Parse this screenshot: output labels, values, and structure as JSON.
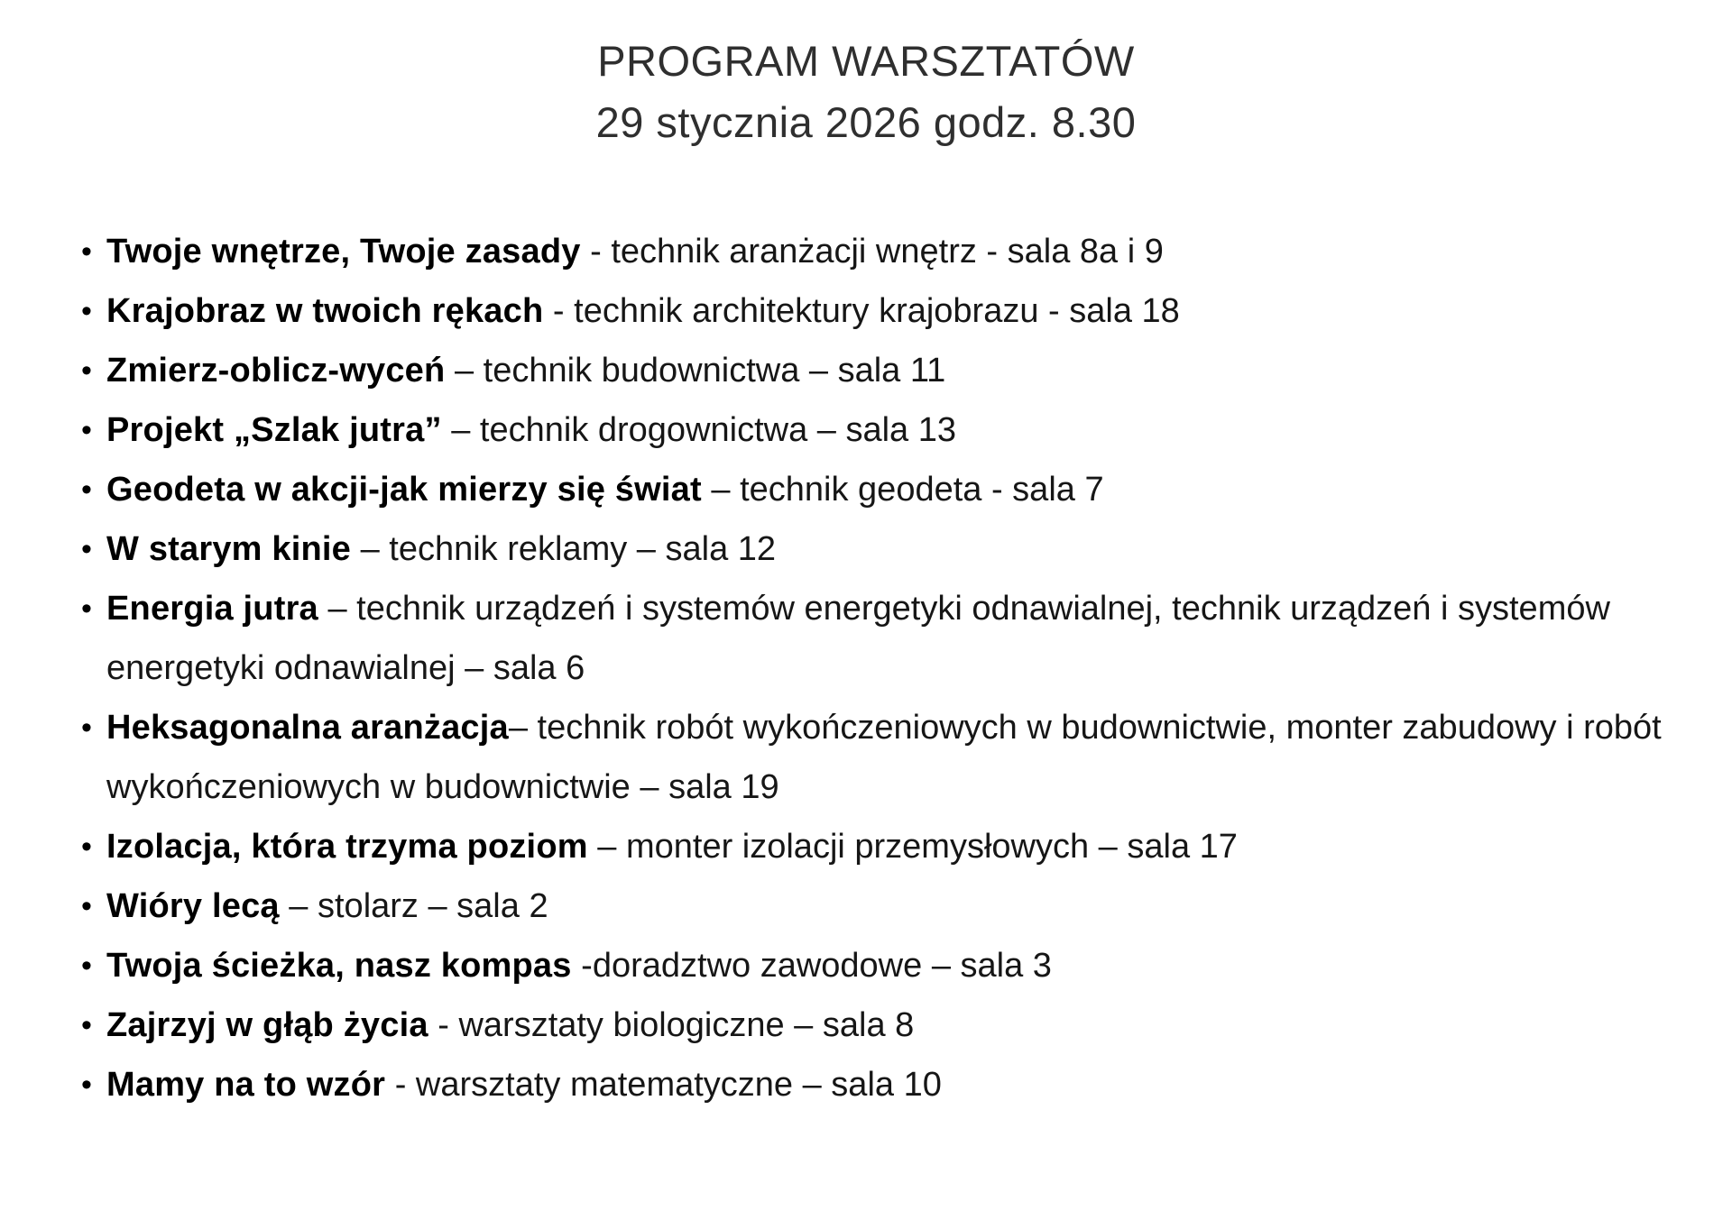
{
  "colors": {
    "background": "#ffffff",
    "text": "#161616",
    "bold-text": "#000000",
    "heading": "#2f2f2f"
  },
  "header": {
    "title": "PROGRAM WARSZTATÓW",
    "subtitle": "29 stycznia 2026 godz. 8.30"
  },
  "list": {
    "bullet_glyph": "•",
    "items": [
      {
        "bold": "Twoje wnętrze, Twoje zasady",
        "rest": " - technik aranżacji wnętrz - sala 8a i 9"
      },
      {
        "bold": "Krajobraz w twoich rękach",
        "rest": " - technik architektury krajobrazu - sala 18"
      },
      {
        "bold": "Zmierz-oblicz-wyceń",
        "rest": " – technik budownictwa – sala 11"
      },
      {
        "bold": "Projekt „Szlak jutra”",
        "rest": " – technik drogownictwa – sala 13"
      },
      {
        "bold": "Geodeta w akcji-jak mierzy się świat",
        "rest": " – technik geodeta - sala 7"
      },
      {
        "bold": "W starym kinie",
        "rest": " – technik reklamy – sala 12"
      },
      {
        "bold": "Energia jutra",
        "rest": " – technik urządzeń i systemów energetyki odnawialnej, technik urządzeń i systemów energetyki odnawialnej – sala 6"
      },
      {
        "bold": "Heksagonalna aranżacja",
        "rest": "– technik robót wykończeniowych w budownictwie, monter zabudowy i robót wykończeniowych w budownictwie – sala 19"
      },
      {
        "bold": "Izolacja, która trzyma poziom",
        "rest": " – monter izolacji przemysłowych – sala 17"
      },
      {
        "bold": "Wióry lecą",
        "rest": " – stolarz – sala 2"
      },
      {
        "bold": "Twoja ścieżka, nasz kompas",
        "rest": " -doradztwo zawodowe – sala 3"
      },
      {
        "bold": "Zajrzyj w głąb życia",
        "rest": " - warsztaty biologiczne – sala 8"
      },
      {
        "bold": "Mamy na to wzór",
        "rest": " - warsztaty matematyczne – sala 10"
      }
    ]
  }
}
